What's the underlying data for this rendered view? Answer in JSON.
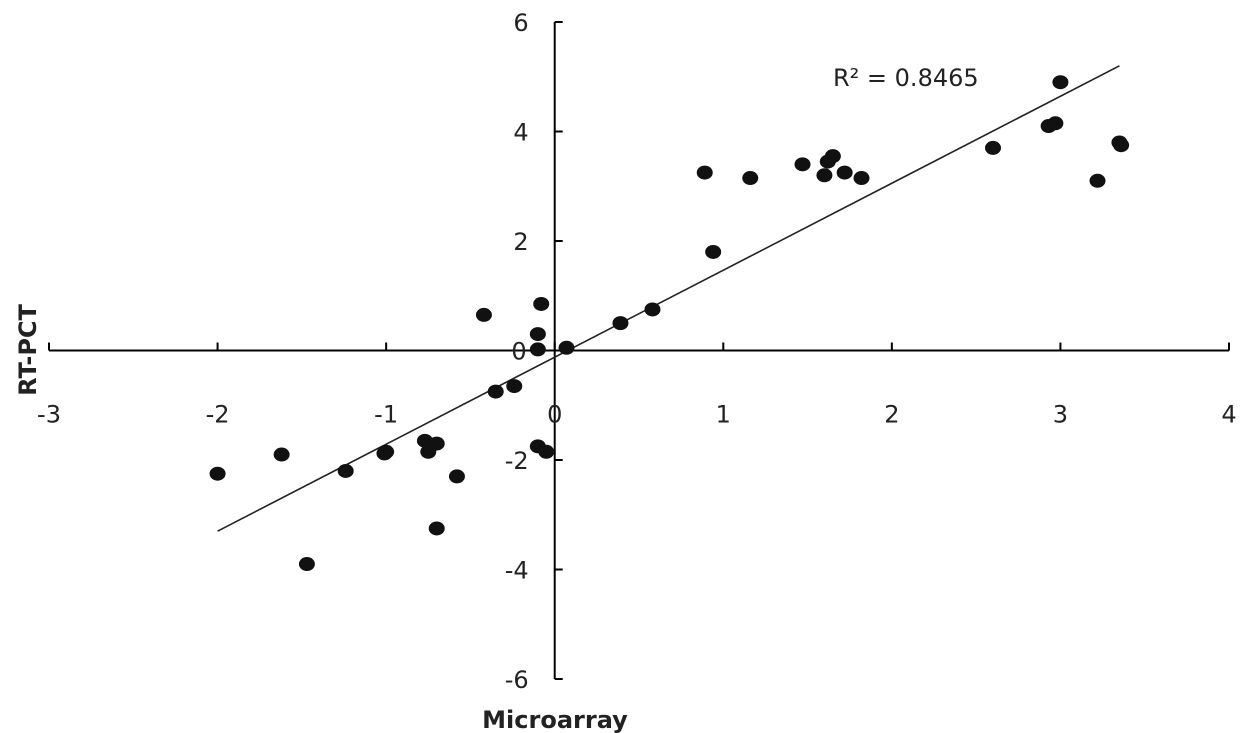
{
  "chart_data": {
    "type": "scatter",
    "xlabel": "Microarray",
    "ylabel": "RT-PCT",
    "xlim": [
      -3,
      4
    ],
    "ylim": [
      -6,
      6
    ],
    "x_ticks": [
      -3,
      -2,
      -1,
      0,
      1,
      2,
      3,
      4
    ],
    "y_ticks": [
      -6,
      -4,
      -2,
      0,
      2,
      4,
      6
    ],
    "grid": false,
    "legend": "none",
    "annotation": "R² = 0.8465",
    "trendline": {
      "x": [
        -2.0,
        3.35
      ],
      "y": [
        -3.3,
        5.2
      ]
    },
    "series": [
      {
        "points": [
          [
            -2.0,
            -2.25
          ],
          [
            -1.62,
            -1.9
          ],
          [
            -1.47,
            -3.9
          ],
          [
            -1.24,
            -2.2
          ],
          [
            -1.01,
            -1.88
          ],
          [
            -1.0,
            -1.85
          ],
          [
            -0.77,
            -1.65
          ],
          [
            -0.75,
            -1.85
          ],
          [
            -0.7,
            -1.7
          ],
          [
            -0.7,
            -3.25
          ],
          [
            -0.58,
            -2.3
          ],
          [
            -0.42,
            0.65
          ],
          [
            -0.35,
            -0.75
          ],
          [
            -0.24,
            -0.65
          ],
          [
            -0.1,
            0.3
          ],
          [
            -0.08,
            0.85
          ],
          [
            -0.1,
            0.02
          ],
          [
            -0.1,
            -1.75
          ],
          [
            -0.05,
            -1.85
          ],
          [
            0.07,
            0.05
          ],
          [
            0.39,
            0.5
          ],
          [
            0.58,
            0.75
          ],
          [
            0.89,
            3.25
          ],
          [
            0.94,
            1.8
          ],
          [
            1.16,
            3.15
          ],
          [
            1.47,
            3.4
          ],
          [
            1.6,
            3.2
          ],
          [
            1.62,
            3.45
          ],
          [
            1.65,
            3.55
          ],
          [
            1.72,
            3.25
          ],
          [
            1.82,
            3.15
          ],
          [
            2.6,
            3.7
          ],
          [
            2.93,
            4.1
          ],
          [
            2.97,
            4.15
          ],
          [
            3.0,
            4.9
          ],
          [
            3.22,
            3.1
          ],
          [
            3.35,
            3.8
          ],
          [
            3.36,
            3.75
          ]
        ]
      }
    ]
  },
  "colors": {
    "marker": "#111111",
    "axis": "#000000",
    "trendline": "#222222"
  }
}
